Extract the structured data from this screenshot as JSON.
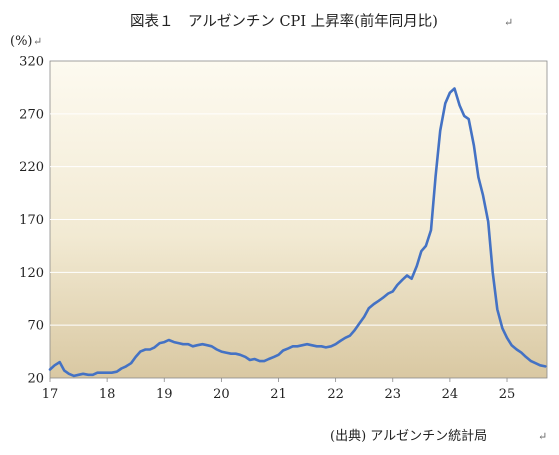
{
  "chart_data": {
    "type": "line",
    "title": "図表１　アルゼンチン CPI 上昇率(前年同月比)",
    "unit_label": "(%)",
    "source": "(出典) アルゼンチン統計局",
    "return_mark": "↵",
    "ylim": [
      20,
      320
    ],
    "yticks": [
      20,
      70,
      120,
      170,
      220,
      270,
      320
    ],
    "xlim": [
      17.0,
      25.7
    ],
    "xticks": [
      {
        "value": 17,
        "label": "17"
      },
      {
        "value": 18,
        "label": "18"
      },
      {
        "value": 19,
        "label": "19"
      },
      {
        "value": 20,
        "label": "20"
      },
      {
        "value": 21,
        "label": "21"
      },
      {
        "value": 22,
        "label": "22"
      },
      {
        "value": 23,
        "label": "23"
      },
      {
        "value": 24,
        "label": "24"
      },
      {
        "value": 25,
        "label": "25"
      }
    ],
    "grid": true,
    "line_color": "#4472C4",
    "background_gradient": [
      "#FDFAF0",
      "#F2EAD3",
      "#D9C8A2"
    ],
    "series": [
      {
        "x": [
          17.0,
          17.08,
          17.17,
          17.25,
          17.33,
          17.42,
          17.5,
          17.58,
          17.67,
          17.75,
          17.83,
          17.92,
          18.0,
          18.08,
          18.17,
          18.25,
          18.33,
          18.42,
          18.5,
          18.58,
          18.67,
          18.75,
          18.83,
          18.92,
          19.0,
          19.08,
          19.17,
          19.25,
          19.33,
          19.42,
          19.5,
          19.58,
          19.67,
          19.75,
          19.83,
          19.92,
          20.0,
          20.08,
          20.17,
          20.25,
          20.33,
          20.42,
          20.5,
          20.58,
          20.67,
          20.75,
          20.83,
          20.92,
          21.0,
          21.08,
          21.17,
          21.25,
          21.33,
          21.42,
          21.5,
          21.58,
          21.67,
          21.75,
          21.83,
          21.92,
          22.0,
          22.08,
          22.17,
          22.25,
          22.33,
          22.42,
          22.5,
          22.58,
          22.67,
          22.75,
          22.83,
          22.92,
          23.0,
          23.08,
          23.17,
          23.25,
          23.33,
          23.42,
          23.5,
          23.58,
          23.67,
          23.75,
          23.83,
          23.92,
          24.0,
          24.08,
          24.17,
          24.25,
          24.33,
          24.42,
          24.5,
          24.58,
          24.67,
          24.75,
          24.83,
          24.92,
          25.0,
          25.08,
          25.17,
          25.25,
          25.33,
          25.42,
          25.5,
          25.58,
          25.67
        ],
        "y": [
          28,
          32,
          35,
          27,
          24,
          22,
          23,
          24,
          23,
          23,
          25,
          25,
          25,
          25,
          26,
          29,
          31,
          34,
          40,
          45,
          47,
          47,
          49,
          53,
          54,
          56,
          54,
          53,
          52,
          52,
          50,
          51,
          52,
          51,
          50,
          47,
          45,
          44,
          43,
          43,
          42,
          40,
          37,
          38,
          36,
          36,
          38,
          40,
          42,
          46,
          48,
          50,
          50,
          51,
          52,
          51,
          50,
          50,
          49,
          50,
          52,
          55,
          58,
          60,
          65,
          72,
          78,
          86,
          90,
          93,
          96,
          100,
          102,
          108,
          113,
          117,
          114,
          126,
          140,
          145,
          160,
          211,
          254,
          280,
          290,
          294,
          278,
          268,
          265,
          240,
          210,
          193,
          168,
          120,
          85,
          67,
          58,
          51,
          47,
          44,
          40,
          36,
          34,
          32,
          31
        ]
      }
    ]
  }
}
